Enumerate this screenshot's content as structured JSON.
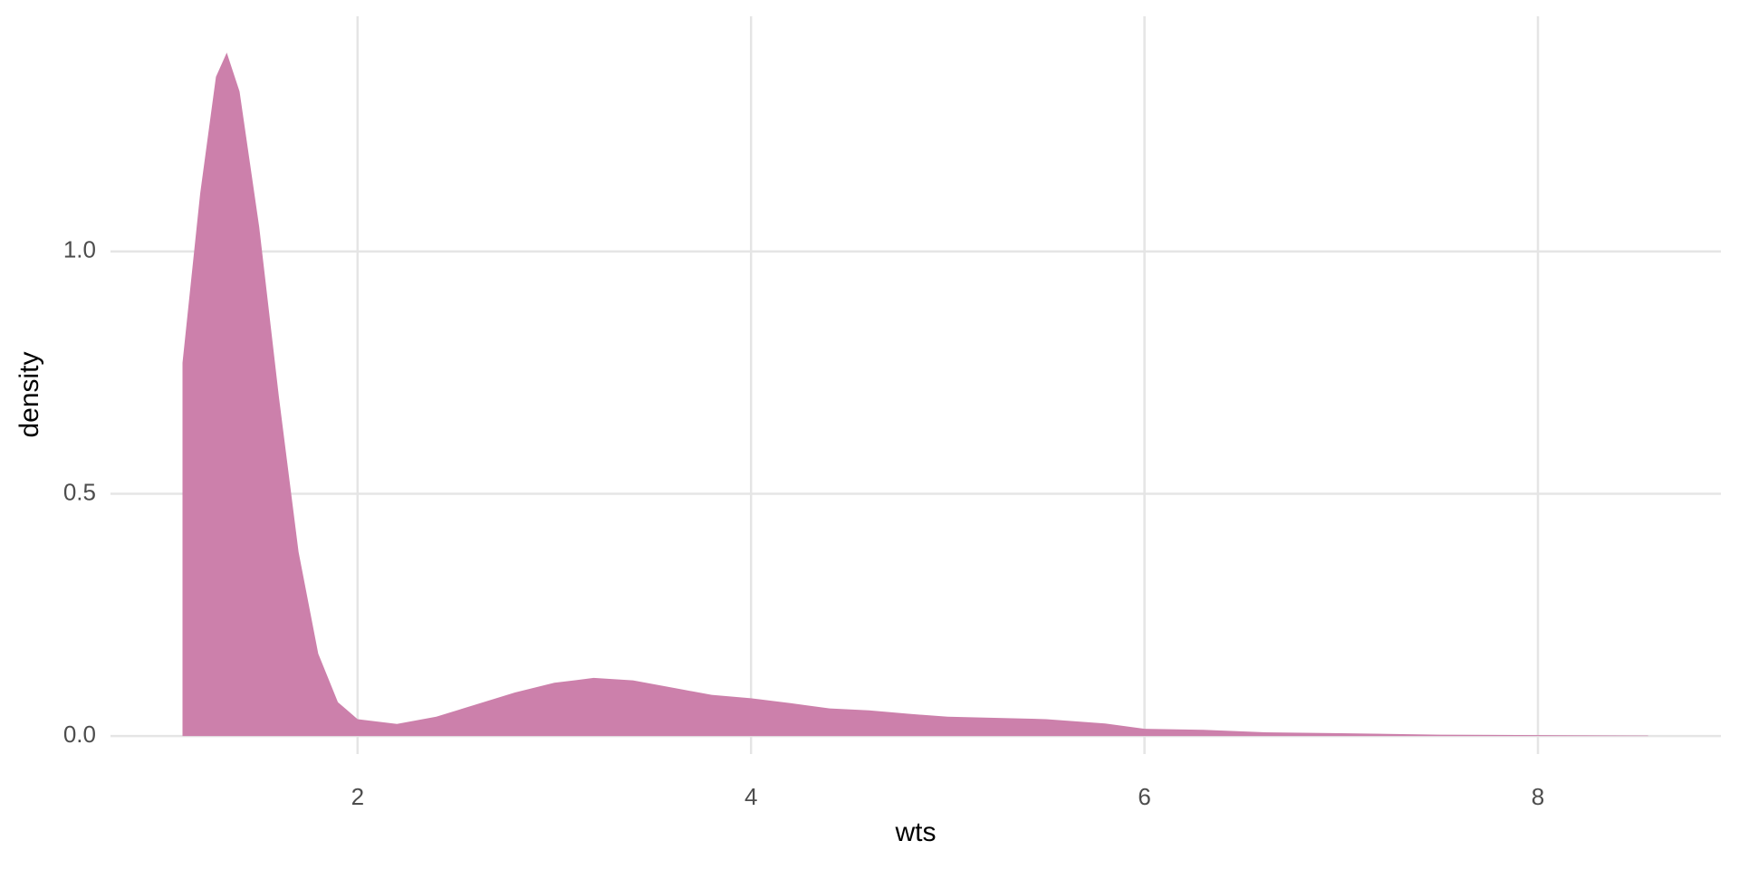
{
  "chart_data": {
    "type": "area",
    "x_label": "wts",
    "y_label": "density",
    "x": [
      1.11,
      1.2,
      1.28,
      1.335,
      1.4,
      1.5,
      1.6,
      1.7,
      1.8,
      1.9,
      2.0,
      2.2,
      2.4,
      2.6,
      2.8,
      3.0,
      3.2,
      3.4,
      3.6,
      3.8,
      4.0,
      4.2,
      4.4,
      4.6,
      4.8,
      5.0,
      5.5,
      5.8,
      6.0,
      6.3,
      6.6,
      7.0,
      7.5,
      8.0,
      8.56
    ],
    "values": [
      0.77,
      1.12,
      1.36,
      1.41,
      1.33,
      1.05,
      0.7,
      0.38,
      0.17,
      0.07,
      0.035,
      0.025,
      0.04,
      0.065,
      0.09,
      0.11,
      0.12,
      0.115,
      0.1,
      0.085,
      0.078,
      0.068,
      0.057,
      0.053,
      0.046,
      0.04,
      0.035,
      0.026,
      0.015,
      0.013,
      0.008,
      0.006,
      0.003,
      0.002,
      0.001
    ],
    "color": "#cc80ab",
    "xlim": [
      0.744,
      8.93
    ],
    "ylim": [
      -0.037,
      1.485
    ],
    "xticks": [
      2,
      4,
      6,
      8
    ],
    "yticks": [
      {
        "value": 0,
        "label": "0.0"
      },
      {
        "value": 0.5,
        "label": "0.5"
      },
      {
        "value": 1,
        "label": "1.0"
      }
    ],
    "grid": true
  }
}
